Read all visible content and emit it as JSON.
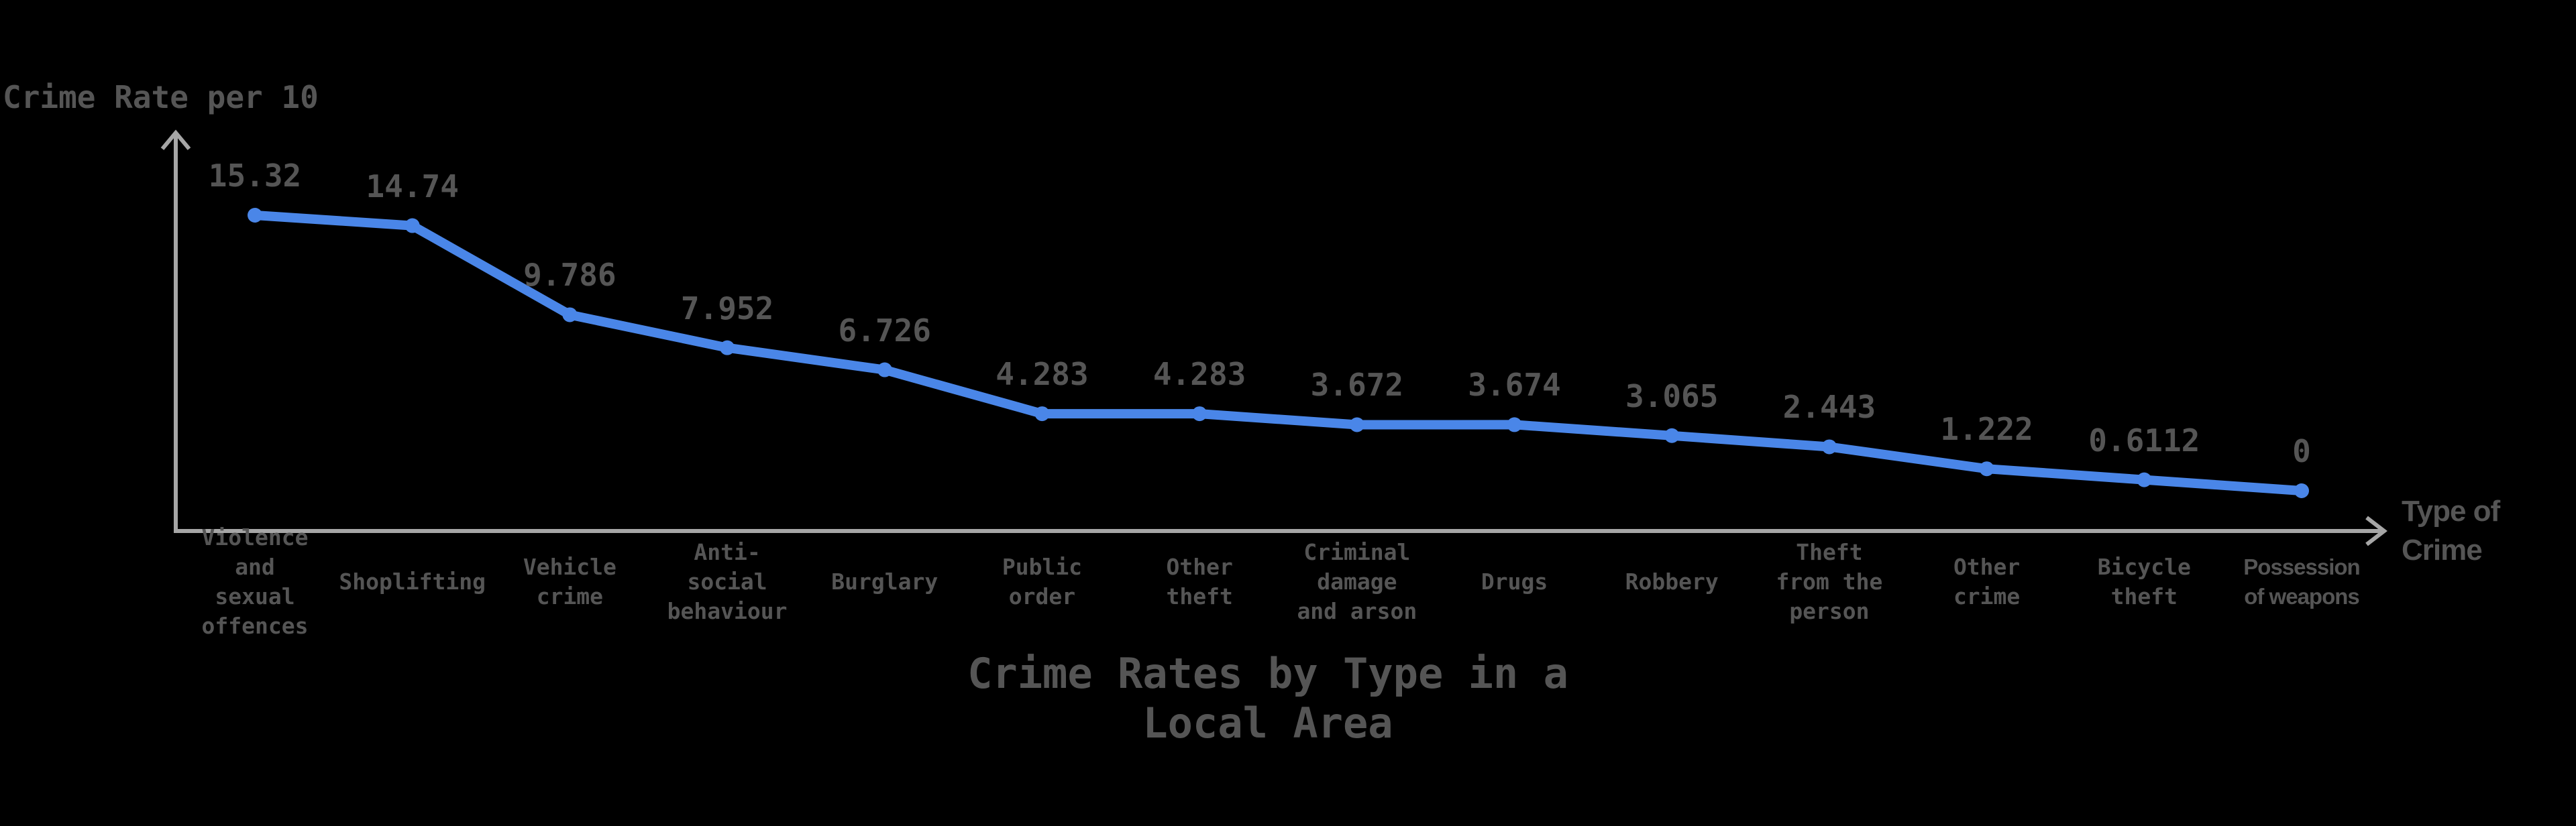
{
  "chart_data": {
    "type": "line",
    "title": "Crime Rates by Type in a Local Area",
    "xlabel": "Type of Crime",
    "ylabel": "Crime Rate per 10",
    "categories": [
      "Violence and sexual offences",
      "Shoplifting",
      "Vehicle crime",
      "Anti-social behaviour",
      "Burglary",
      "Public order",
      "Other theft",
      "Criminal damage and arson",
      "Drugs",
      "Robbery",
      "Theft from the person",
      "Other crime",
      "Bicycle theft",
      "Possession of weapons"
    ],
    "series": [
      {
        "name": "Crime Rate per 10",
        "color": "#4a86e8",
        "values": [
          15.32,
          14.74,
          9.786,
          7.952,
          6.726,
          4.283,
          4.283,
          3.672,
          3.674,
          3.065,
          2.443,
          1.222,
          0.6112,
          0
        ]
      }
    ],
    "value_labels": [
      "15.32",
      "14.74",
      "9.786",
      "7.952",
      "6.726",
      "4.283",
      "4.283",
      "3.672",
      "3.674",
      "3.065",
      "2.443",
      "1.222",
      "0.6112",
      "0"
    ],
    "grid": false,
    "legend": "none",
    "y_ticks_visible": false
  },
  "axes": {
    "y_title": "Crime Rate per 10",
    "x_title_line1": "Type of",
    "x_title_line2": "Crime"
  },
  "title": {
    "line1": "Crime Rates by Type in a",
    "line2": "Local Area"
  },
  "labels": {
    "c0": [
      "Violence",
      "and",
      "sexual",
      "offences"
    ],
    "c1": [
      "Shoplifting"
    ],
    "c2": [
      "Vehicle",
      "crime"
    ],
    "c3": [
      "Anti-",
      "social",
      "behaviour"
    ],
    "c4": [
      "Burglary"
    ],
    "c5": [
      "Public",
      "order"
    ],
    "c6": [
      "Other",
      "theft"
    ],
    "c7": [
      "Criminal",
      "damage",
      "and arson"
    ],
    "c8": [
      "Drugs"
    ],
    "c9": [
      "Robbery"
    ],
    "c10": [
      "Theft",
      "from the",
      "person"
    ],
    "c11": [
      "Other",
      "crime"
    ],
    "c12": [
      "Bicycle",
      "theft"
    ],
    "c13": [
      "Possession",
      "of weapons"
    ]
  },
  "colors": {
    "background": "#000000",
    "line": "#4a86e8",
    "axis": "#a6a6a6",
    "text": "#555555"
  }
}
